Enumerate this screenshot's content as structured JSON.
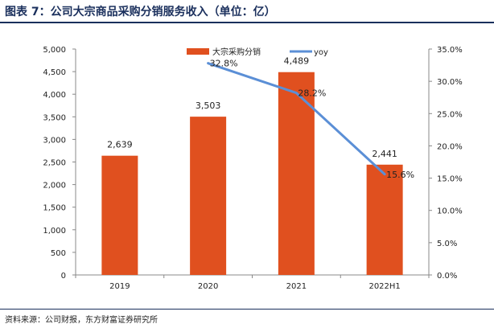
{
  "figure": {
    "title": "图表 7：公司大宗商品采购分销服务收入（单位：亿）",
    "source": "资料来源：公司财报，东方财富证券研究所"
  },
  "chart_data": {
    "type": "bar",
    "categories": [
      "2019",
      "2020",
      "2021",
      "2022H1"
    ],
    "series": [
      {
        "name": "大宗采购分销",
        "type": "bar",
        "axis": "left",
        "color": "#e0501f",
        "values": [
          2639,
          3503,
          4489,
          2441
        ],
        "labels": [
          "2,639",
          "3,503",
          "4,489",
          "2,441"
        ]
      },
      {
        "name": "yoy",
        "type": "line",
        "axis": "right",
        "color": "#5b8fd6",
        "x": [
          "2020",
          "2021",
          "2022H1"
        ],
        "values": [
          32.8,
          28.2,
          15.6
        ],
        "labels": [
          "32.8%",
          "28.2%",
          "15.6%"
        ]
      }
    ],
    "left_axis": {
      "ylim": [
        0,
        5000
      ],
      "ticks": [
        "0",
        "500",
        "1,000",
        "1,500",
        "2,000",
        "2,500",
        "3,000",
        "3,500",
        "4,000",
        "4,500",
        "5,000"
      ]
    },
    "right_axis": {
      "ylim": [
        0,
        35
      ],
      "ticks": [
        "0.0%",
        "5.0%",
        "10.0%",
        "15.0%",
        "20.0%",
        "25.0%",
        "30.0%",
        "35.0%"
      ]
    },
    "grid": false,
    "legend_position": "top-center"
  }
}
